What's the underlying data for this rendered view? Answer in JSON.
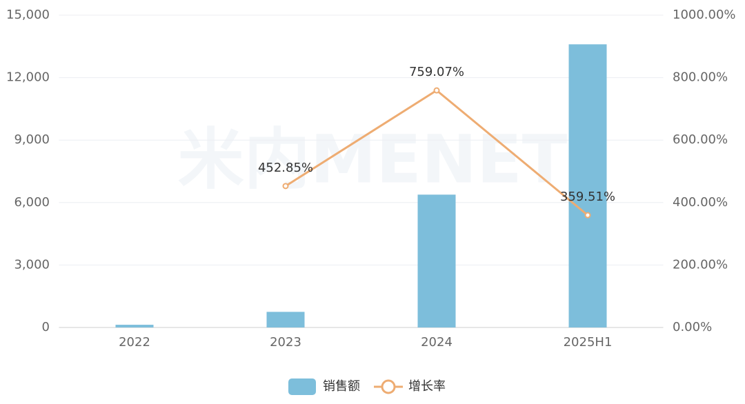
{
  "chart_data": {
    "type": "bar-line",
    "watermark": "米内MENET",
    "categories": [
      "2022",
      "2023",
      "2024",
      "2025H1"
    ],
    "series": [
      {
        "name": "销售额",
        "type": "bar",
        "color": "#7dbedb",
        "values": [
          130,
          750,
          6380,
          13600
        ]
      },
      {
        "name": "增长率",
        "type": "line",
        "axis": "y2",
        "color": "#eeac72",
        "values": [
          null,
          452.85,
          759.07,
          359.51
        ],
        "value_labels": [
          null,
          "452.85%",
          "759.07%",
          "359.51%"
        ]
      }
    ],
    "ylim": [
      0,
      15000
    ],
    "yticks": [
      0,
      {
        "value": 3000,
        "label": "3,000"
      },
      {
        "value": 6000,
        "label": "6,000"
      },
      {
        "value": 9000,
        "label": "9,000"
      },
      {
        "value": 12000,
        "label": "12,000"
      },
      {
        "value": 15000,
        "label": "15,000"
      }
    ],
    "y2lim": [
      0,
      1000
    ],
    "y2ticks": [
      {
        "value": 0,
        "label": "0.00%"
      },
      {
        "value": 200,
        "label": "200.00%"
      },
      {
        "value": 400,
        "label": "400.00%"
      },
      {
        "value": 600,
        "label": "600.00%"
      },
      {
        "value": 800,
        "label": "800.00%"
      },
      {
        "value": 1000,
        "label": "1000.00%"
      }
    ],
    "grid": true,
    "legend": "bottom"
  }
}
